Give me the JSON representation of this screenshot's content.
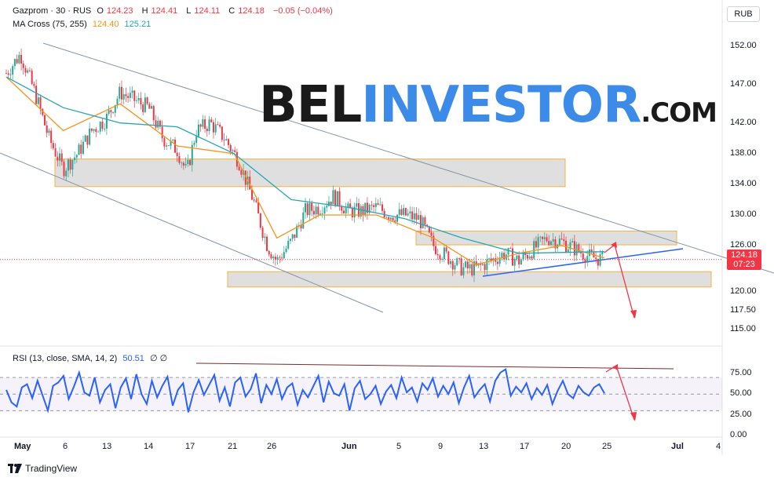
{
  "header": {
    "symbol": "Gazprom · 30 · RUS",
    "o_label": "O",
    "o": "124.23",
    "h_label": "H",
    "h": "124.41",
    "l_label": "L",
    "l": "124.11",
    "c_label": "C",
    "c": "124.18",
    "change": "−0.05 (−0.04%)",
    "ma_label": "MA Cross (75, 255)",
    "ma_fast": "124.40",
    "ma_slow": "125.21",
    "currency": "RUB"
  },
  "rsi_header": {
    "label": "RSI (13, close, SMA, 14, 2)",
    "value": "50.51",
    "extra": "∅ ∅"
  },
  "last_price": {
    "value": "124.18",
    "countdown": "07:23"
  },
  "watermark": {
    "part1": "BEL",
    "part2": "INVESTOR",
    "part3": ".COM"
  },
  "brand": "TradingView",
  "colors": {
    "up": "#22ab94",
    "down": "#f23645",
    "ma_fast": "#f7931a",
    "ma_slow": "#26a6b5",
    "rsi": "#2962ff",
    "zone": "#d9d9d9",
    "zone_border": "#f7b23b"
  },
  "chart_data": [
    {
      "type": "candlestick",
      "title": "Gazprom · 30 · RUS",
      "y_ticks": [
        "152.00",
        "147.00",
        "142.00",
        "138.00",
        "134.00",
        "130.00",
        "126.00",
        "120.00",
        "117.50",
        "115.00"
      ],
      "x_ticks": [
        "May",
        "6",
        "13",
        "14",
        "17",
        "21",
        "26",
        "Jun",
        "5",
        "9",
        "13",
        "17",
        "20",
        "25",
        "Jul",
        "4"
      ],
      "ylim": [
        113,
        156
      ],
      "close_path": [
        {
          "x": 0,
          "y": 148.5
        },
        {
          "x": 3,
          "y": 151
        },
        {
          "x": 6,
          "y": 146
        },
        {
          "x": 9,
          "y": 140
        },
        {
          "x": 12,
          "y": 136
        },
        {
          "x": 15,
          "y": 138
        },
        {
          "x": 18,
          "y": 141
        },
        {
          "x": 21,
          "y": 142.5
        },
        {
          "x": 24,
          "y": 146
        },
        {
          "x": 27,
          "y": 145
        },
        {
          "x": 30,
          "y": 144
        },
        {
          "x": 33,
          "y": 140
        },
        {
          "x": 36,
          "y": 138.5
        },
        {
          "x": 38,
          "y": 135.5
        },
        {
          "x": 40,
          "y": 141
        },
        {
          "x": 43,
          "y": 142
        },
        {
          "x": 46,
          "y": 140
        },
        {
          "x": 49,
          "y": 137
        },
        {
          "x": 52,
          "y": 132
        },
        {
          "x": 55,
          "y": 126
        },
        {
          "x": 57,
          "y": 124
        },
        {
          "x": 60,
          "y": 126.5
        },
        {
          "x": 63,
          "y": 130.5
        },
        {
          "x": 66,
          "y": 131
        },
        {
          "x": 69,
          "y": 132.5
        },
        {
          "x": 72,
          "y": 130.5
        },
        {
          "x": 75,
          "y": 130.5
        },
        {
          "x": 78,
          "y": 131
        },
        {
          "x": 81,
          "y": 130
        },
        {
          "x": 84,
          "y": 130
        },
        {
          "x": 87,
          "y": 129.5
        },
        {
          "x": 90,
          "y": 126
        },
        {
          "x": 93,
          "y": 124.5
        },
        {
          "x": 96,
          "y": 123
        },
        {
          "x": 99,
          "y": 123
        },
        {
          "x": 102,
          "y": 124
        },
        {
          "x": 105,
          "y": 125
        },
        {
          "x": 108,
          "y": 124
        },
        {
          "x": 111,
          "y": 125.5
        },
        {
          "x": 114,
          "y": 127
        },
        {
          "x": 117,
          "y": 126.5
        },
        {
          "x": 120,
          "y": 125.5
        },
        {
          "x": 123,
          "y": 124.5
        },
        {
          "x": 126,
          "y": 124.18
        }
      ],
      "series": [
        {
          "name": "MA 75",
          "values": [
            {
              "x": 0,
              "y": 148
            },
            {
              "x": 12,
              "y": 141
            },
            {
              "x": 24,
              "y": 144.5
            },
            {
              "x": 36,
              "y": 139
            },
            {
              "x": 48,
              "y": 138
            },
            {
              "x": 57,
              "y": 127
            },
            {
              "x": 66,
              "y": 130
            },
            {
              "x": 78,
              "y": 130
            },
            {
              "x": 90,
              "y": 127
            },
            {
              "x": 99,
              "y": 123.5
            },
            {
              "x": 108,
              "y": 125
            },
            {
              "x": 117,
              "y": 126
            },
            {
              "x": 126,
              "y": 124.4
            }
          ]
        },
        {
          "name": "MA 255",
          "values": [
            {
              "x": 0,
              "y": 148
            },
            {
              "x": 12,
              "y": 144
            },
            {
              "x": 24,
              "y": 142
            },
            {
              "x": 36,
              "y": 141.5
            },
            {
              "x": 48,
              "y": 138
            },
            {
              "x": 60,
              "y": 132
            },
            {
              "x": 72,
              "y": 131
            },
            {
              "x": 84,
              "y": 129.5
            },
            {
              "x": 96,
              "y": 127
            },
            {
              "x": 108,
              "y": 125
            },
            {
              "x": 126,
              "y": 125.21
            }
          ]
        }
      ],
      "zones": [
        [
          133.7,
          137.3
        ],
        [
          126.1,
          127.9
        ],
        [
          120.6,
          122.6
        ]
      ]
    },
    {
      "type": "line",
      "title": "RSI (13, close, SMA, 14, 2)",
      "y_ticks": [
        "75.00",
        "50.00",
        "25.00",
        "0.00"
      ],
      "ylim": [
        0,
        90
      ],
      "levels": [
        70,
        50,
        30
      ],
      "values": [
        55,
        40,
        35,
        58,
        62,
        45,
        66,
        48,
        30,
        60,
        64,
        72,
        44,
        59,
        76,
        52,
        48,
        70,
        40,
        55,
        62,
        33,
        58,
        69,
        44,
        74,
        50,
        38,
        66,
        46,
        60,
        71,
        36,
        55,
        63,
        28,
        52,
        67,
        49,
        61,
        73,
        42,
        58,
        35,
        64,
        70,
        47,
        56,
        75,
        39,
        61,
        50,
        68,
        44,
        58,
        63,
        37,
        55,
        46,
        59,
        72,
        40,
        65,
        51,
        48,
        62,
        30,
        57,
        66,
        44,
        50,
        60,
        38,
        53,
        61,
        45,
        70,
        52,
        58,
        41,
        63,
        55,
        69,
        47,
        60,
        50,
        64,
        39,
        58,
        72,
        46,
        55,
        62,
        41,
        66,
        76,
        80,
        48,
        59,
        52,
        63,
        44,
        57,
        49,
        61,
        38,
        54,
        66,
        50,
        45,
        60,
        52,
        48,
        58,
        62,
        51
      ]
    }
  ]
}
